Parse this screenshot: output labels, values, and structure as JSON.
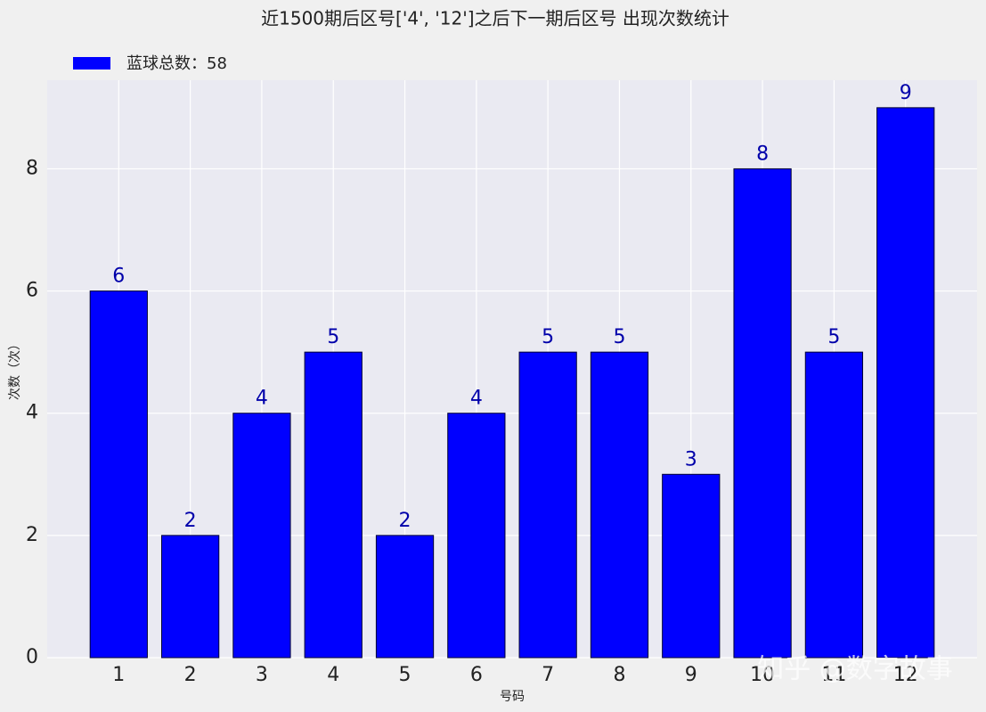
{
  "chart_data": {
    "type": "bar",
    "title": "近1500期后区号['4', '12']之后下一期后区号 出现次数统计",
    "x_label": "号码",
    "y_label": "次数（次）",
    "categories": [
      "1",
      "2",
      "3",
      "4",
      "5",
      "6",
      "7",
      "8",
      "9",
      "10",
      "11",
      "12"
    ],
    "series": [
      {
        "name": "蓝球总数：58",
        "color": "#0000ff",
        "values": [
          6,
          2,
          4,
          5,
          2,
          4,
          5,
          5,
          3,
          8,
          5,
          9
        ]
      }
    ],
    "ylim": [
      0,
      9.45
    ],
    "yticks": [
      0,
      2,
      4,
      6,
      8
    ],
    "grid": true,
    "legend": "upper left",
    "watermark": "知乎 @数字故事"
  }
}
